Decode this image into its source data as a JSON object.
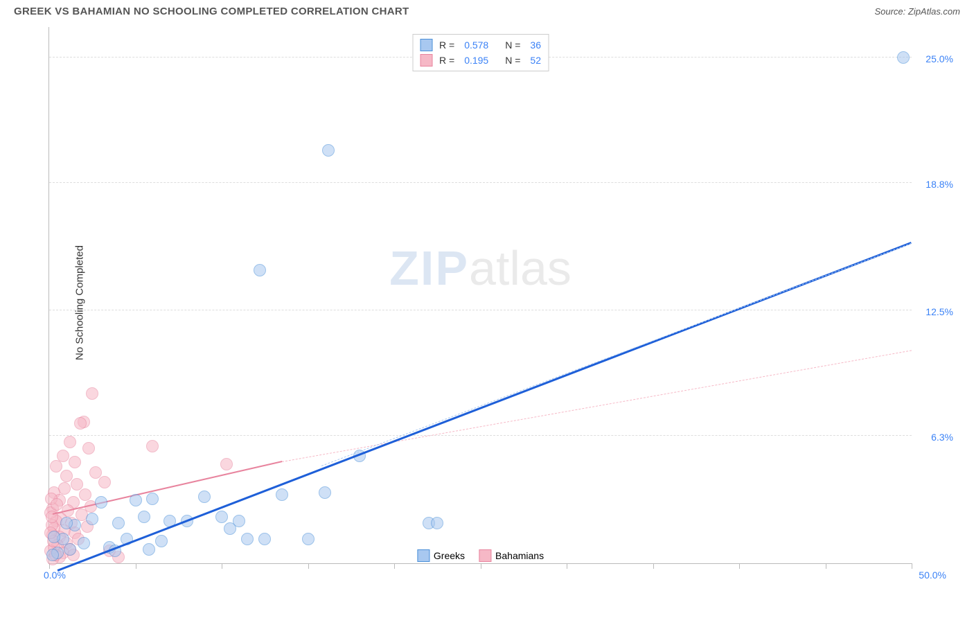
{
  "header": {
    "title": "GREEK VS BAHAMIAN NO SCHOOLING COMPLETED CORRELATION CHART",
    "source_label": "Source: ",
    "source_value": "ZipAtlas.com"
  },
  "watermark": {
    "zip": "ZIP",
    "atlas": "atlas"
  },
  "chart": {
    "type": "scatter",
    "background_color": "#ffffff",
    "grid_color": "#dddddd",
    "axis_color": "#bbbbbb",
    "tick_label_color": "#3b82f6",
    "y_axis_title": "No Schooling Completed",
    "xlim": [
      0,
      50
    ],
    "ylim": [
      0,
      26.5
    ],
    "y_gridlines": [
      6.3,
      12.5,
      18.8,
      25.0
    ],
    "y_tick_labels": [
      "6.3%",
      "12.5%",
      "18.8%",
      "25.0%"
    ],
    "x_ticks": [
      0,
      5,
      10,
      15,
      20,
      25,
      30,
      35,
      40,
      45,
      50
    ],
    "x_label_min": "0.0%",
    "x_label_max": "50.0%",
    "series": {
      "greeks": {
        "label": "Greeks",
        "fill_color": "#a8c8f0",
        "stroke_color": "#4a8fd8",
        "fill_opacity": 0.55,
        "marker_radius": 9,
        "trend": {
          "solid": {
            "x1": 0.5,
            "y1": -0.4,
            "x2": 50,
            "y2": 15.8,
            "color": "#1e5fd8",
            "width": 2.5
          },
          "dashed": {
            "x1": 15.8,
            "y1": 4.8,
            "x2": 50,
            "y2": 15.8,
            "color": "#a8c8f0"
          }
        },
        "stats": {
          "r_label": "R =",
          "r_value": "0.578",
          "n_label": "N =",
          "n_value": "36"
        },
        "points": [
          [
            49.5,
            25.0
          ],
          [
            16.2,
            20.4
          ],
          [
            12.2,
            14.5
          ],
          [
            18.0,
            5.3
          ],
          [
            22.0,
            2.0
          ],
          [
            22.5,
            2.0
          ],
          [
            16.0,
            3.5
          ],
          [
            15.0,
            1.2
          ],
          [
            12.5,
            1.2
          ],
          [
            11.5,
            1.2
          ],
          [
            10.5,
            1.7
          ],
          [
            10.0,
            2.3
          ],
          [
            9.0,
            3.3
          ],
          [
            8.0,
            2.1
          ],
          [
            7.0,
            2.1
          ],
          [
            6.0,
            3.2
          ],
          [
            6.5,
            1.1
          ],
          [
            5.5,
            2.3
          ],
          [
            5.0,
            3.1
          ],
          [
            4.5,
            1.2
          ],
          [
            4.0,
            2.0
          ],
          [
            3.5,
            0.8
          ],
          [
            3.0,
            3.0
          ],
          [
            2.5,
            2.2
          ],
          [
            2.0,
            1.0
          ],
          [
            1.5,
            1.9
          ],
          [
            1.2,
            0.7
          ],
          [
            1.0,
            2.0
          ],
          [
            0.8,
            1.2
          ],
          [
            0.5,
            0.5
          ],
          [
            0.3,
            1.3
          ],
          [
            0.2,
            0.4
          ],
          [
            3.8,
            0.6
          ],
          [
            5.8,
            0.7
          ],
          [
            13.5,
            3.4
          ],
          [
            11.0,
            2.1
          ]
        ]
      },
      "bahamians": {
        "label": "Bahamians",
        "fill_color": "#f6b8c6",
        "stroke_color": "#e8849e",
        "fill_opacity": 0.55,
        "marker_radius": 9,
        "trend": {
          "solid": {
            "x1": 0.2,
            "y1": 2.4,
            "x2": 13.5,
            "y2": 5.0,
            "color": "#e8849e",
            "width": 2
          },
          "dashed": {
            "x1": 13.5,
            "y1": 5.0,
            "x2": 50,
            "y2": 10.5,
            "color": "#f6b8c6"
          }
        },
        "stats": {
          "r_label": "R =",
          "r_value": "0.195",
          "n_label": "N =",
          "n_value": "52"
        },
        "points": [
          [
            2.5,
            8.4
          ],
          [
            2.0,
            7.0
          ],
          [
            1.8,
            6.9
          ],
          [
            6.0,
            5.8
          ],
          [
            10.3,
            4.9
          ],
          [
            1.2,
            6.0
          ],
          [
            2.3,
            5.7
          ],
          [
            1.5,
            5.0
          ],
          [
            0.8,
            5.3
          ],
          [
            2.7,
            4.5
          ],
          [
            0.4,
            4.8
          ],
          [
            1.0,
            4.3
          ],
          [
            3.2,
            4.0
          ],
          [
            1.6,
            3.9
          ],
          [
            0.9,
            3.7
          ],
          [
            2.1,
            3.4
          ],
          [
            0.3,
            3.5
          ],
          [
            1.4,
            3.0
          ],
          [
            0.6,
            3.1
          ],
          [
            2.4,
            2.8
          ],
          [
            1.1,
            2.6
          ],
          [
            0.2,
            2.7
          ],
          [
            1.9,
            2.4
          ],
          [
            0.7,
            2.2
          ],
          [
            1.3,
            2.0
          ],
          [
            0.4,
            2.1
          ],
          [
            2.2,
            1.8
          ],
          [
            0.9,
            1.6
          ],
          [
            1.5,
            1.5
          ],
          [
            0.3,
            1.7
          ],
          [
            0.6,
            1.3
          ],
          [
            1.7,
            1.2
          ],
          [
            0.2,
            1.4
          ],
          [
            1.0,
            1.0
          ],
          [
            0.5,
            0.9
          ],
          [
            1.2,
            0.7
          ],
          [
            0.3,
            0.8
          ],
          [
            0.8,
            0.5
          ],
          [
            0.1,
            0.6
          ],
          [
            1.4,
            0.4
          ],
          [
            0.6,
            0.3
          ],
          [
            0.2,
            0.2
          ],
          [
            3.5,
            0.6
          ],
          [
            4.0,
            0.3
          ],
          [
            0.1,
            2.5
          ],
          [
            0.15,
            1.9
          ],
          [
            0.25,
            1.1
          ],
          [
            0.35,
            0.4
          ],
          [
            0.12,
            3.2
          ],
          [
            0.18,
            2.3
          ],
          [
            0.08,
            1.5
          ],
          [
            0.45,
            2.9
          ]
        ]
      }
    }
  }
}
